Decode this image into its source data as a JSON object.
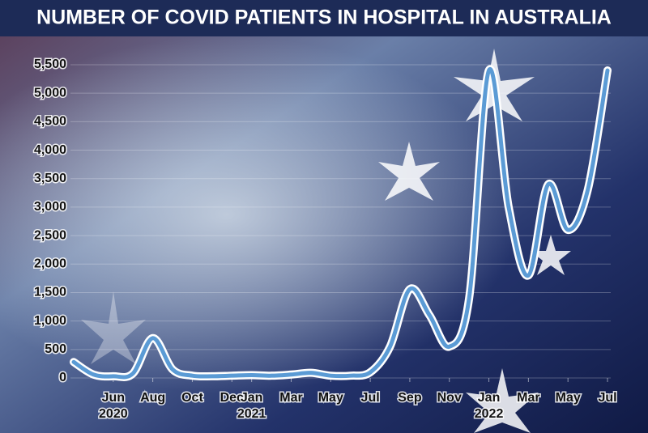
{
  "chart_data": {
    "type": "line",
    "title": "NUMBER OF COVID PATIENTS IN HOSPITAL IN AUSTRALIA",
    "x": [
      "2020-04",
      "2020-05",
      "2020-06",
      "2020-07",
      "2020-08",
      "2020-09",
      "2020-10",
      "2020-11",
      "2020-12",
      "2021-01",
      "2021-02",
      "2021-03",
      "2021-04",
      "2021-05",
      "2021-06",
      "2021-07",
      "2021-08",
      "2021-09",
      "2021-10",
      "2021-11",
      "2021-12",
      "2022-01",
      "2022-02",
      "2022-03",
      "2022-04",
      "2022-05",
      "2022-06",
      "2022-07"
    ],
    "series": [
      {
        "color": "#5b9bd5",
        "values": [
          280,
          60,
          30,
          80,
          700,
          150,
          40,
          30,
          40,
          50,
          40,
          60,
          90,
          40,
          40,
          100,
          550,
          1560,
          1100,
          550,
          1400,
          5400,
          3000,
          1800,
          3400,
          2600,
          3300,
          5400
        ]
      }
    ],
    "xlim": [
      "2020-04",
      "2022-07"
    ],
    "xticks": [
      {
        "value": "2020-06",
        "label": "Jun"
      },
      {
        "value": "2020-08",
        "label": "Aug"
      },
      {
        "value": "2020-10",
        "label": "Oct"
      },
      {
        "value": "2020-12",
        "label": "Dec"
      },
      {
        "value": "2021-01",
        "label": "Jan"
      },
      {
        "value": "2021-03",
        "label": "Mar"
      },
      {
        "value": "2021-05",
        "label": "May"
      },
      {
        "value": "2021-07",
        "label": "Jul"
      },
      {
        "value": "2021-09",
        "label": "Sep"
      },
      {
        "value": "2021-11",
        "label": "Nov"
      },
      {
        "value": "2022-01",
        "label": "Jan"
      },
      {
        "value": "2022-03",
        "label": "Mar"
      },
      {
        "value": "2022-05",
        "label": "May"
      },
      {
        "value": "2022-07",
        "label": "Jul"
      }
    ],
    "year_labels": [
      {
        "value": "2020-06",
        "label": "2020"
      },
      {
        "value": "2021-01",
        "label": "2021"
      },
      {
        "value": "2022-01",
        "label": "2022"
      }
    ],
    "ylim": [
      0,
      5500
    ],
    "yticks": [
      0,
      500,
      {
        "value": 1000,
        "label": "1,000"
      },
      {
        "value": 1500,
        "label": "1,500"
      },
      {
        "value": 2000,
        "label": "2,000"
      },
      {
        "value": 2500,
        "label": "2,500"
      },
      {
        "value": 3000,
        "label": "3,000"
      },
      {
        "value": 3500,
        "label": "3,500"
      },
      {
        "value": 4000,
        "label": "4,000"
      },
      {
        "value": 4500,
        "label": "4,500"
      },
      {
        "value": 5000,
        "label": "5,000"
      },
      {
        "value": 5500,
        "label": "5,500"
      }
    ]
  }
}
